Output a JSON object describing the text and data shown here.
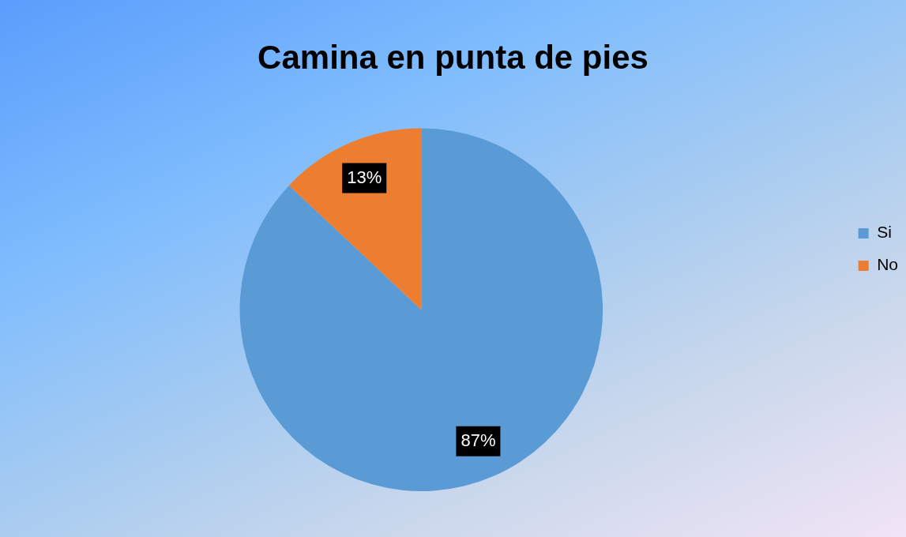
{
  "chart_data": {
    "type": "pie",
    "title": "Camina en punta de pies",
    "categories": [
      "Si",
      "No"
    ],
    "values": [
      87,
      13
    ],
    "colors": [
      "#5b9bd5",
      "#ed7d31"
    ],
    "value_labels": [
      "87%",
      "13%"
    ],
    "legend": "right"
  }
}
